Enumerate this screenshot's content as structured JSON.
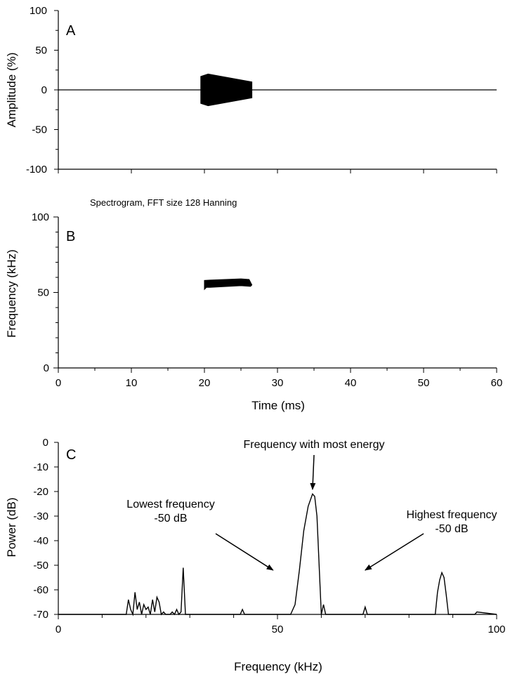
{
  "chart_data": [
    {
      "panel": "A",
      "type": "waveform",
      "panel_label": "A",
      "ylabel": "Amplitude (%)",
      "xlim": [
        0,
        60
      ],
      "ylim": [
        -100,
        100
      ],
      "y_ticks": [
        "100",
        "50",
        "0",
        "-50",
        "-100"
      ],
      "x_minor_ticks": [
        0,
        10,
        20,
        30,
        40,
        50,
        60
      ],
      "baseline": 0,
      "pulse": {
        "start_ms": 19.5,
        "end_ms": 26.5,
        "peak_amplitude": 20,
        "end_amplitude": 10
      }
    },
    {
      "panel": "B",
      "type": "spectrogram",
      "panel_label": "B",
      "caption": "Spectrogram, FFT size 128 Hanning",
      "ylabel": "Frequency (kHz)",
      "xlabel": "Time (ms)",
      "xlim": [
        0,
        60
      ],
      "ylim": [
        0,
        100
      ],
      "x_ticks": [
        "0",
        "10",
        "20",
        "30",
        "40",
        "50",
        "60"
      ],
      "y_ticks": [
        "100",
        "50",
        "0"
      ],
      "call": {
        "start_ms": 20,
        "end_ms": 26.5,
        "freq_start_khz": 57,
        "freq_end_khz": 58,
        "freq_low_khz": 52,
        "freq_high_khz": 59
      }
    },
    {
      "panel": "C",
      "type": "line",
      "panel_label": "C",
      "ylabel": "Power (dB)",
      "xlabel": "Frequency (kHz)",
      "xlim": [
        0,
        100
      ],
      "ylim": [
        -70,
        0
      ],
      "x_ticks": [
        "0",
        "50",
        "100"
      ],
      "y_ticks": [
        "0",
        "-10",
        "-20",
        "-30",
        "-40",
        "-50",
        "-60",
        "-70"
      ],
      "x": [
        0,
        15.5,
        16,
        16.5,
        17,
        17.5,
        18,
        18.5,
        19,
        19.5,
        20,
        20.5,
        21,
        21.5,
        22,
        22.5,
        23,
        23.5,
        24,
        24.5,
        25,
        25.5,
        26,
        26.5,
        27,
        27.5,
        28,
        28.5,
        29,
        29.5,
        30,
        41.5,
        42,
        42.5,
        53,
        54,
        55,
        56,
        57,
        58,
        58.5,
        59,
        60,
        60.5,
        61,
        61.5,
        61.8,
        69.5,
        70,
        70.5,
        86,
        86.5,
        87,
        87.5,
        88,
        88.5,
        89,
        90,
        95,
        95.5,
        100
      ],
      "y": [
        -70,
        -70,
        -64,
        -68,
        -70,
        -61,
        -68,
        -65,
        -70,
        -66,
        -68,
        -67,
        -70,
        -64,
        -69,
        -63,
        -65,
        -70,
        -69,
        -70,
        -70,
        -70,
        -69,
        -70,
        -68,
        -70,
        -69,
        -51,
        -70,
        -70,
        -70,
        -70,
        -68,
        -70,
        -70,
        -66,
        -52,
        -36,
        -26,
        -21,
        -22,
        -30,
        -70,
        -66,
        -70,
        -70,
        -70,
        -70,
        -67,
        -70,
        -70,
        -61,
        -56,
        -53,
        -55,
        -62,
        -70,
        -70,
        -70,
        -69,
        -70
      ],
      "annotations": [
        {
          "text": "Frequency with most energy",
          "lines": [
            "Frequency with most energy"
          ],
          "arrow_to": [
            58,
            -20
          ]
        },
        {
          "text": "Lowest frequency -50 dB",
          "lines": [
            "Lowest frequency",
            "-50 dB"
          ],
          "arrow_to": [
            49,
            -52
          ]
        },
        {
          "text": "Highest frequency -50 dB",
          "lines": [
            "Highest frequency",
            "-50 dB"
          ],
          "arrow_to": [
            70,
            -52
          ]
        }
      ]
    }
  ]
}
